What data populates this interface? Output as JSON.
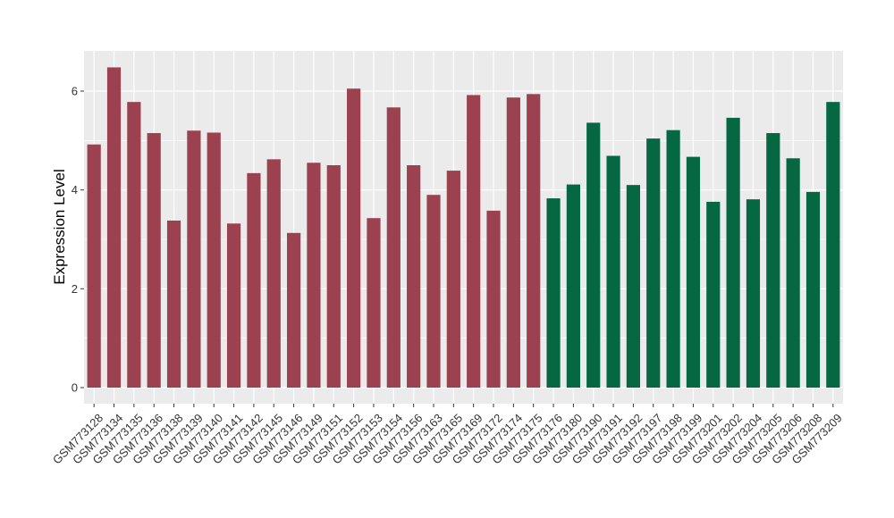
{
  "chart_data": {
    "type": "bar",
    "title": "",
    "xlabel": "",
    "ylabel": "Expression Level",
    "ylim": [
      -0.3,
      6.8
    ],
    "yticks": [
      0,
      2,
      4,
      6
    ],
    "grid": true,
    "legend": "none",
    "categories": [
      "GSM773128",
      "GSM773134",
      "GSM773135",
      "GSM773136",
      "GSM773138",
      "GSM773139",
      "GSM773140",
      "GSM773141",
      "GSM773142",
      "GSM773145",
      "GSM773146",
      "GSM773149",
      "GSM773151",
      "GSM773152",
      "GSM773153",
      "GSM773154",
      "GSM773156",
      "GSM773163",
      "GSM773165",
      "GSM773169",
      "GSM773172",
      "GSM773174",
      "GSM773175",
      "GSM773176",
      "GSM773180",
      "GSM773190",
      "GSM773191",
      "GSM773192",
      "GSM773197",
      "GSM773198",
      "GSM773199",
      "GSM773201",
      "GSM773202",
      "GSM773204",
      "GSM773205",
      "GSM773206",
      "GSM773208",
      "GSM773209"
    ],
    "values": [
      4.92,
      6.48,
      5.78,
      5.15,
      3.38,
      5.2,
      5.16,
      3.32,
      4.34,
      4.62,
      3.13,
      4.55,
      4.5,
      6.05,
      3.43,
      5.67,
      4.5,
      3.9,
      4.39,
      5.92,
      3.58,
      5.87,
      5.94,
      3.83,
      4.11,
      5.36,
      4.69,
      4.1,
      5.04,
      5.21,
      4.67,
      3.76,
      5.46,
      3.81,
      5.15,
      4.64,
      3.96,
      5.78
    ],
    "groups": [
      0,
      0,
      0,
      0,
      0,
      0,
      0,
      0,
      0,
      0,
      0,
      0,
      0,
      0,
      0,
      0,
      0,
      0,
      0,
      0,
      0,
      0,
      0,
      1,
      1,
      1,
      1,
      1,
      1,
      1,
      1,
      1,
      1,
      1,
      1,
      1,
      1,
      1
    ],
    "group_colors": [
      "#9b4150",
      "#056843"
    ],
    "panel_background": "#ebebeb",
    "grid_color": "#ffffff"
  }
}
